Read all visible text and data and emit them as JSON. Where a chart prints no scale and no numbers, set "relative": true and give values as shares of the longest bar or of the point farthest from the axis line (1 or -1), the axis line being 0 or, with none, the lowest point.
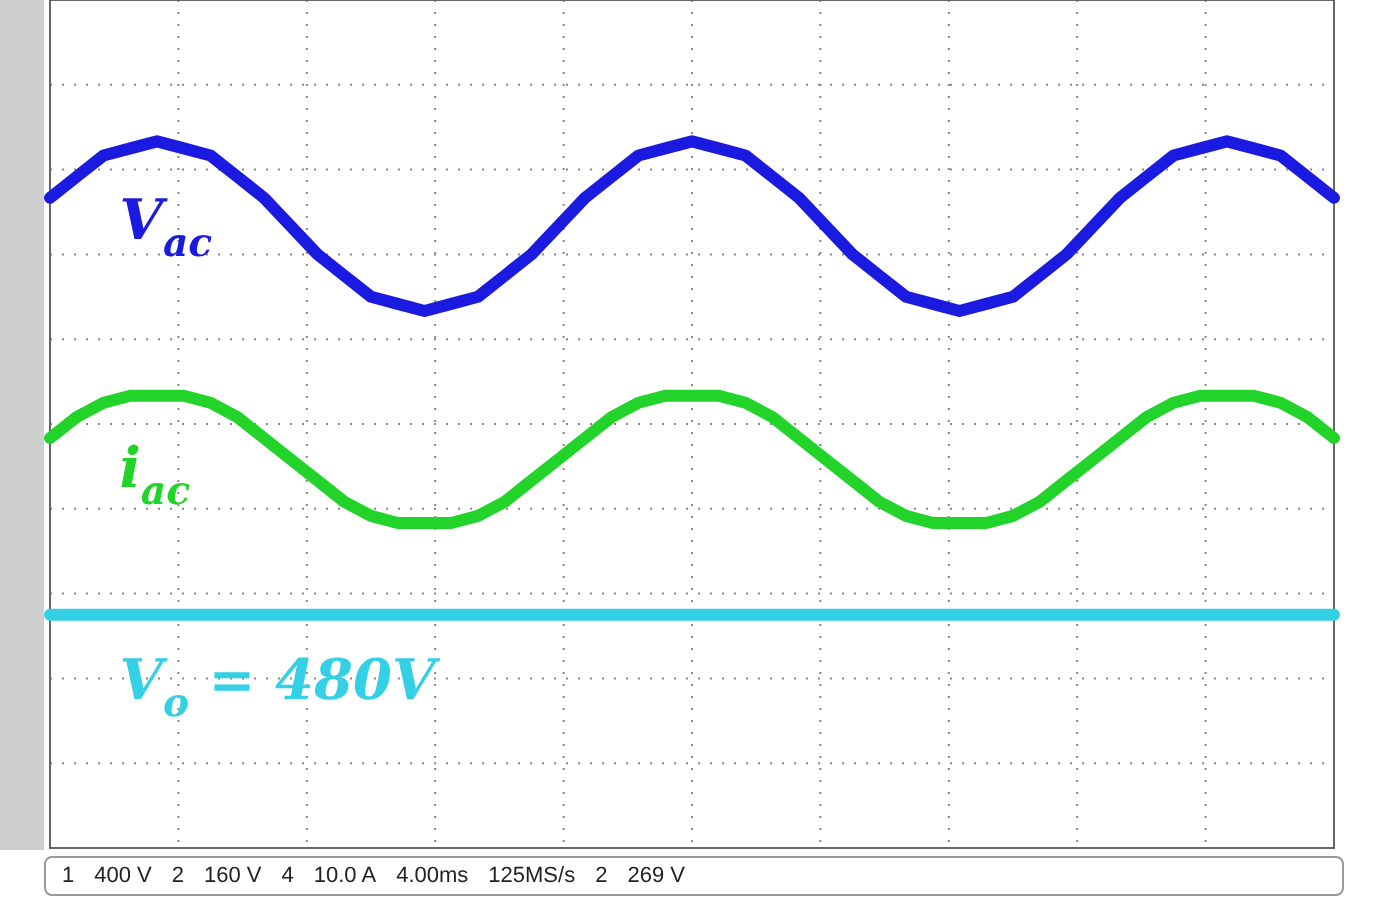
{
  "chart_data": {
    "type": "line",
    "relative": true,
    "grid": true,
    "legend": false,
    "marker": "none",
    "line_style": "solid",
    "categories": [
      null,
      null,
      null,
      null,
      null,
      null,
      null,
      null,
      null,
      null,
      null,
      null,
      null,
      null,
      null,
      null,
      null,
      null,
      null,
      null,
      null,
      null,
      null,
      null,
      null,
      null,
      null,
      null,
      null,
      null,
      null,
      null,
      null,
      null,
      null,
      null,
      null,
      null,
      null,
      null,
      null,
      null,
      null,
      null,
      null,
      null,
      null,
      null,
      null
    ],
    "series": [
      {
        "name": "V$_{ac}$",
        "color": "#1a1ae0",
        "values": [
          0.92,
          0.95,
          0.98,
          0.99,
          1.0,
          0.99,
          0.98,
          0.95,
          0.92,
          0.88,
          0.84,
          0.81,
          0.78,
          0.77,
          0.76,
          0.77,
          0.78,
          0.81,
          0.84,
          0.88,
          0.92,
          0.95,
          0.98,
          0.99,
          1.0,
          0.99,
          0.98,
          0.95,
          0.92,
          0.88,
          0.84,
          0.81,
          0.78,
          0.77,
          0.76,
          0.77,
          0.78,
          0.81,
          0.84,
          0.88,
          0.92,
          0.95,
          0.98,
          0.99,
          1.0,
          0.99,
          0.98,
          0.95,
          0.92
        ]
      },
      {
        "name": "i$_{ac}$",
        "color": "#22d42a",
        "values": [
          0.58,
          0.61,
          0.63,
          0.64,
          0.64,
          0.64,
          0.63,
          0.61,
          0.58,
          0.55,
          0.52,
          0.49,
          0.47,
          0.46,
          0.46,
          0.46,
          0.47,
          0.49,
          0.52,
          0.55,
          0.58,
          0.61,
          0.63,
          0.64,
          0.64,
          0.64,
          0.63,
          0.61,
          0.58,
          0.55,
          0.52,
          0.49,
          0.47,
          0.46,
          0.46,
          0.46,
          0.47,
          0.49,
          0.52,
          0.55,
          0.58,
          0.61,
          0.63,
          0.64,
          0.64,
          0.64,
          0.63,
          0.61,
          0.58
        ]
      },
      {
        "name": "V$_{o}$ = 480V",
        "color": "#33d0e6",
        "values": [
          0.33,
          0.33,
          0.33,
          0.33,
          0.33,
          0.33,
          0.33,
          0.33,
          0.33,
          0.33,
          0.33,
          0.33,
          0.33,
          0.33,
          0.33,
          0.33,
          0.33,
          0.33,
          0.33,
          0.33,
          0.33,
          0.33,
          0.33,
          0.33,
          0.33,
          0.33,
          0.33,
          0.33,
          0.33,
          0.33,
          0.33,
          0.33,
          0.33,
          0.33,
          0.33,
          0.33,
          0.33,
          0.33,
          0.33,
          0.33,
          0.33,
          0.33,
          0.33,
          0.33,
          0.33,
          0.33,
          0.33,
          0.33,
          0.33
        ]
      }
    ],
    "annotations": [
      "1",
      "400 V",
      "2",
      "160 V",
      "4",
      "10.0 A",
      "4.00ms",
      "125MS/s",
      "2",
      "269 V"
    ]
  }
}
